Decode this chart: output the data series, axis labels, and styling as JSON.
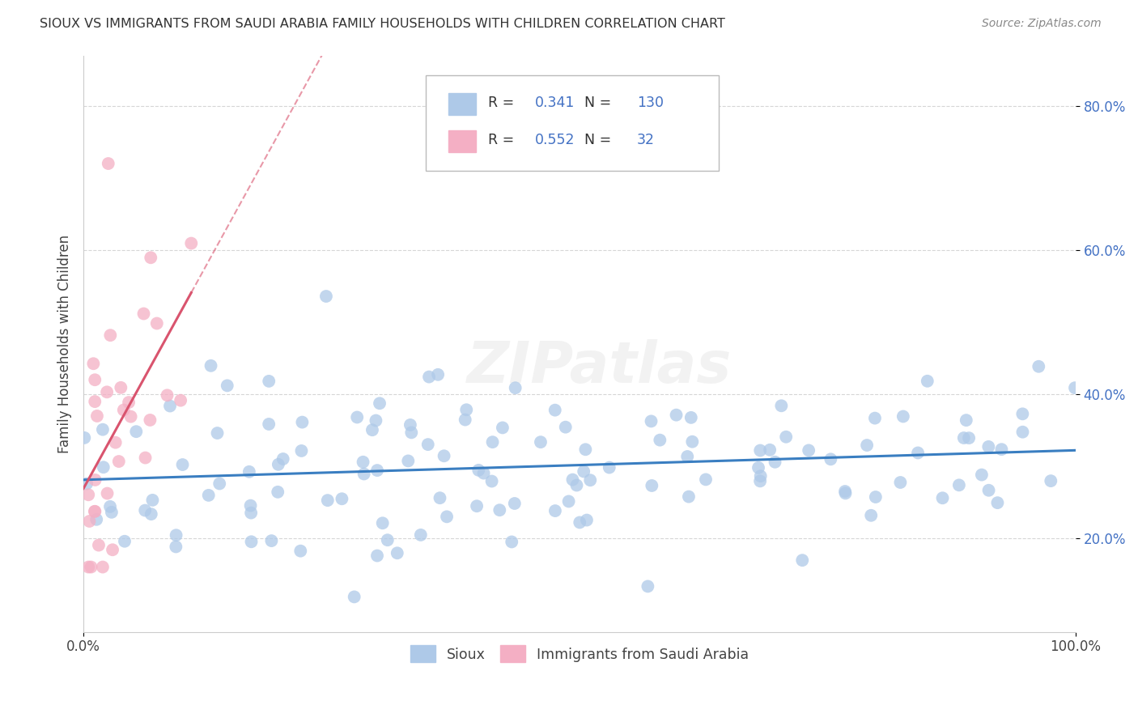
{
  "title": "SIOUX VS IMMIGRANTS FROM SAUDI ARABIA FAMILY HOUSEHOLDS WITH CHILDREN CORRELATION CHART",
  "source": "Source: ZipAtlas.com",
  "ylabel": "Family Households with Children",
  "xlim": [
    0,
    1.0
  ],
  "ylim": [
    0.07,
    0.87
  ],
  "y_ticks": [
    0.2,
    0.4,
    0.6,
    0.8
  ],
  "y_tick_labels": [
    "20.0%",
    "40.0%",
    "60.0%",
    "80.0%"
  ],
  "legend_label1": "Sioux",
  "legend_label2": "Immigrants from Saudi Arabia",
  "R1": "0.341",
  "N1": "130",
  "R2": "0.552",
  "N2": "32",
  "color_blue": "#aec9e8",
  "color_pink": "#f4afc4",
  "line_color_blue": "#3a7ec1",
  "line_color_pink": "#d9546e",
  "text_blue": "#4472c4",
  "background_color": "#ffffff",
  "grid_color": "#cccccc",
  "watermark": "ZIPatlas"
}
